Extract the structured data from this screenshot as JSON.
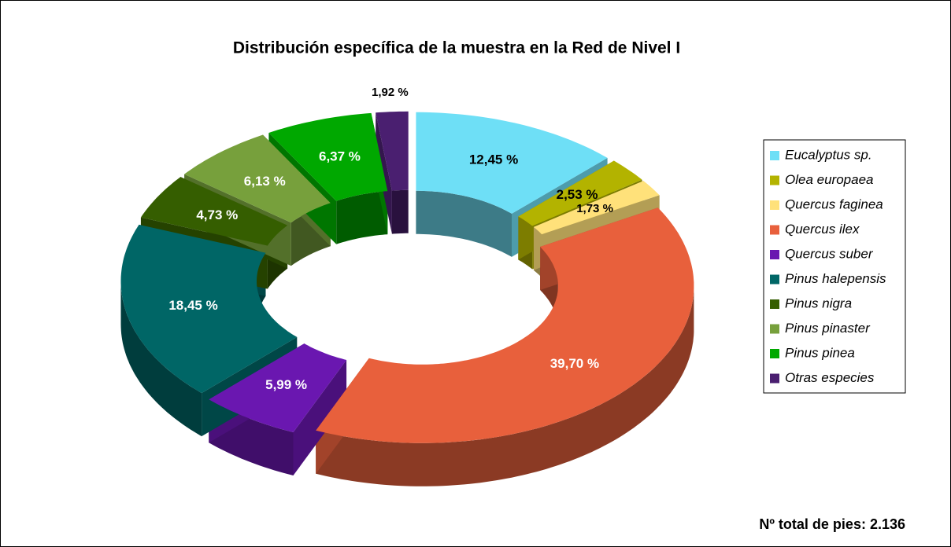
{
  "chart_data": {
    "type": "donut",
    "title": "Distribución específica de la muestra en la Red de Nivel I",
    "categories": [
      "Eucalyptus sp.",
      "Olea europaea",
      "Quercus faginea",
      "Quercus ilex",
      "Quercus suber",
      "Pinus halepensis",
      "Pinus nigra",
      "Pinus pinaster",
      "Pinus pinea",
      "Otras especies"
    ],
    "values": [
      12.45,
      2.53,
      1.73,
      39.7,
      5.99,
      18.45,
      4.73,
      6.13,
      6.37,
      1.92
    ],
    "value_labels": [
      "12,45 %",
      "2,53 %",
      "1,73 %",
      "39,70 %",
      "5,99 %",
      "18,45 %",
      "4,73 %",
      "6,13 %",
      "6,37 %",
      "1,92 %"
    ],
    "colors": [
      "#6edff6",
      "#b3b300",
      "#ffe17a",
      "#e8603c",
      "#6a17b0",
      "#006666",
      "#355e00",
      "#77a03c",
      "#00a800",
      "#4a1f70"
    ],
    "legend": "right",
    "annotation": "Nº total de pies: 2.136"
  }
}
